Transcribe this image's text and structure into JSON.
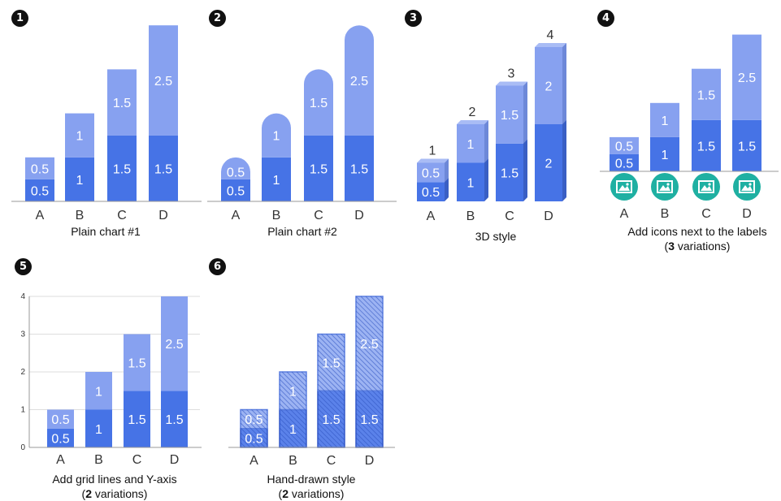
{
  "colors": {
    "bottom": "#4673e6",
    "top": "#87a1f0",
    "icon": "#1fb0a2",
    "axis": "#999999",
    "grid": "#dddddd"
  },
  "chart_data": [
    {
      "type": "bar",
      "stacked": true,
      "style": "plain",
      "badge": "1",
      "caption": "Plain chart #1",
      "categories": [
        "A",
        "B",
        "C",
        "D"
      ],
      "series": [
        {
          "values": [
            0.5,
            1,
            1.5,
            1.5
          ]
        },
        {
          "values": [
            0.5,
            1,
            1.5,
            2.5
          ]
        }
      ],
      "ylim": [
        0,
        4
      ]
    },
    {
      "type": "bar",
      "stacked": true,
      "style": "rounded",
      "badge": "2",
      "caption": "Plain chart #2",
      "categories": [
        "A",
        "B",
        "C",
        "D"
      ],
      "series": [
        {
          "values": [
            0.5,
            1,
            1.5,
            1.5
          ]
        },
        {
          "values": [
            0.5,
            1,
            1.5,
            2.5
          ]
        }
      ],
      "ylim": [
        0,
        4
      ]
    },
    {
      "type": "bar",
      "stacked": true,
      "style": "3d",
      "badge": "3",
      "caption": "3D style",
      "categories": [
        "A",
        "B",
        "C",
        "D"
      ],
      "series": [
        {
          "values": [
            0.5,
            1,
            1.5,
            2
          ]
        },
        {
          "values": [
            0.5,
            1,
            1.5,
            2
          ]
        }
      ],
      "totals": [
        "1",
        "2",
        "3",
        "4"
      ],
      "ylim": [
        0,
        4
      ]
    },
    {
      "type": "bar",
      "stacked": true,
      "style": "icons",
      "badge": "4",
      "caption_line1": "Add icons next to the labels",
      "caption_line2_bold": "3",
      "caption_line2_rest": " variations)",
      "categories": [
        "A",
        "B",
        "C",
        "D"
      ],
      "icons": [
        "image-icon",
        "image-icon",
        "image-icon",
        "image-icon"
      ],
      "series": [
        {
          "values": [
            0.5,
            1,
            1.5,
            1.5
          ]
        },
        {
          "values": [
            0.5,
            1,
            1.5,
            2.5
          ]
        }
      ],
      "ylim": [
        0,
        4
      ]
    },
    {
      "type": "bar",
      "stacked": true,
      "style": "grid",
      "badge": "5",
      "caption_line1": "Add grid lines and Y-axis",
      "caption_line2_bold": "2",
      "caption_line2_rest": " variations)",
      "categories": [
        "A",
        "B",
        "C",
        "D"
      ],
      "series": [
        {
          "values": [
            0.5,
            1,
            1.5,
            1.5
          ]
        },
        {
          "values": [
            0.5,
            1,
            1.5,
            2.5
          ]
        }
      ],
      "yticks": [
        0,
        1,
        2,
        3,
        4
      ],
      "ylim": [
        0,
        4
      ],
      "grid": true
    },
    {
      "type": "bar",
      "stacked": true,
      "style": "hand-drawn",
      "badge": "6",
      "caption_line1": "Hand-drawn style",
      "caption_line2_bold": "2",
      "caption_line2_rest": " variations)",
      "categories": [
        "A",
        "B",
        "C",
        "D"
      ],
      "series": [
        {
          "values": [
            0.5,
            1,
            1.5,
            1.5
          ]
        },
        {
          "values": [
            0.5,
            1,
            1.5,
            2.5
          ]
        }
      ],
      "ylim": [
        0,
        4
      ]
    }
  ]
}
